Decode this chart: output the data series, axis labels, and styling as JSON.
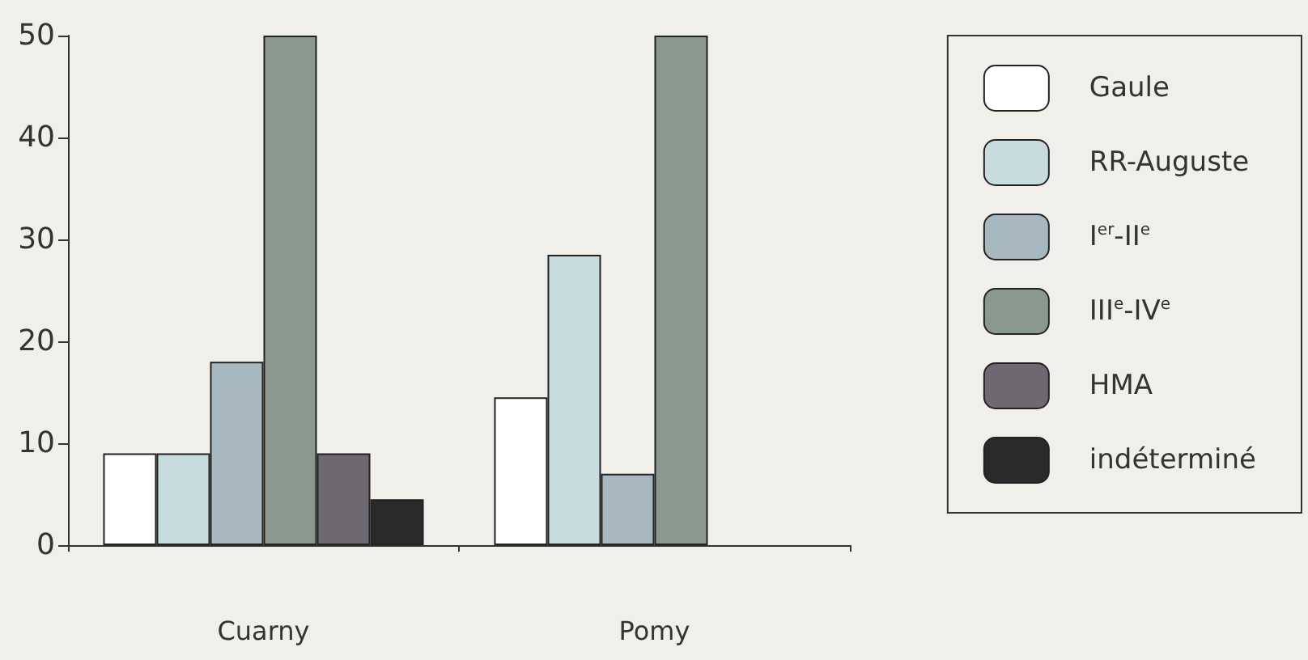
{
  "chart_data": {
    "type": "bar",
    "categories": [
      "Cuarny",
      "Pomy"
    ],
    "series": [
      {
        "name": "Gaule",
        "color": "#ffffff",
        "values": [
          9,
          14.5
        ]
      },
      {
        "name": "RR-Auguste",
        "color": "#c8dce0",
        "values": [
          9,
          28.5
        ]
      },
      {
        "name": "I$^{er}$-II$^{e}$",
        "color": "#a8b8c0",
        "values": [
          18,
          7
        ]
      },
      {
        "name": "III$^{e}$-IV$^{e}$",
        "color": "#8a9890",
        "values": [
          50,
          50
        ]
      },
      {
        "name": "HMA",
        "color": "#6e6870",
        "values": [
          9,
          null
        ]
      },
      {
        "name": "indéterminé",
        "color": "#2a2a2a",
        "values": [
          4.5,
          null
        ]
      }
    ],
    "ylim": [
      0,
      50
    ],
    "yticks": [
      0,
      10,
      20,
      30,
      40,
      50
    ],
    "grid": false,
    "legend": "right"
  }
}
